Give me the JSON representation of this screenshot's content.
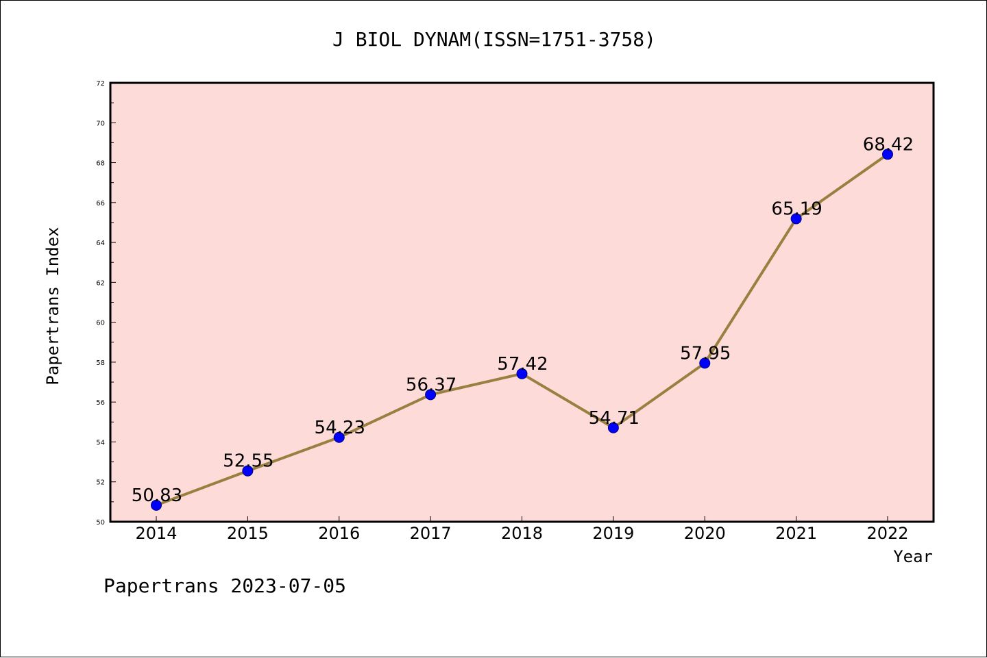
{
  "chart_data": {
    "type": "line",
    "title": "J BIOL DYNAM(ISSN=1751-3758)",
    "xlabel": "Year",
    "ylabel": "Papertrans Index",
    "categories": [
      "2014",
      "2015",
      "2016",
      "2017",
      "2018",
      "2019",
      "2020",
      "2021",
      "2022"
    ],
    "values": [
      50.83,
      52.55,
      54.23,
      56.37,
      57.42,
      54.71,
      57.95,
      65.19,
      68.42
    ],
    "data_labels": [
      "50.83",
      "52.55",
      "54.23",
      "56.37",
      "57.42",
      "54.71",
      "57.95",
      "65.19",
      "68.42"
    ],
    "ylim": [
      50,
      72
    ],
    "yticks": [
      "50",
      "52",
      "54",
      "56",
      "58",
      "60",
      "62",
      "64",
      "66",
      "68",
      "70",
      "72"
    ],
    "grid": false,
    "legend": "none",
    "colors": {
      "plot_background": "#fddbd8",
      "line": "#9a8040",
      "marker": "#0000ff",
      "marker_edge": "#000080"
    }
  },
  "footer": "Papertrans 2023-07-05"
}
